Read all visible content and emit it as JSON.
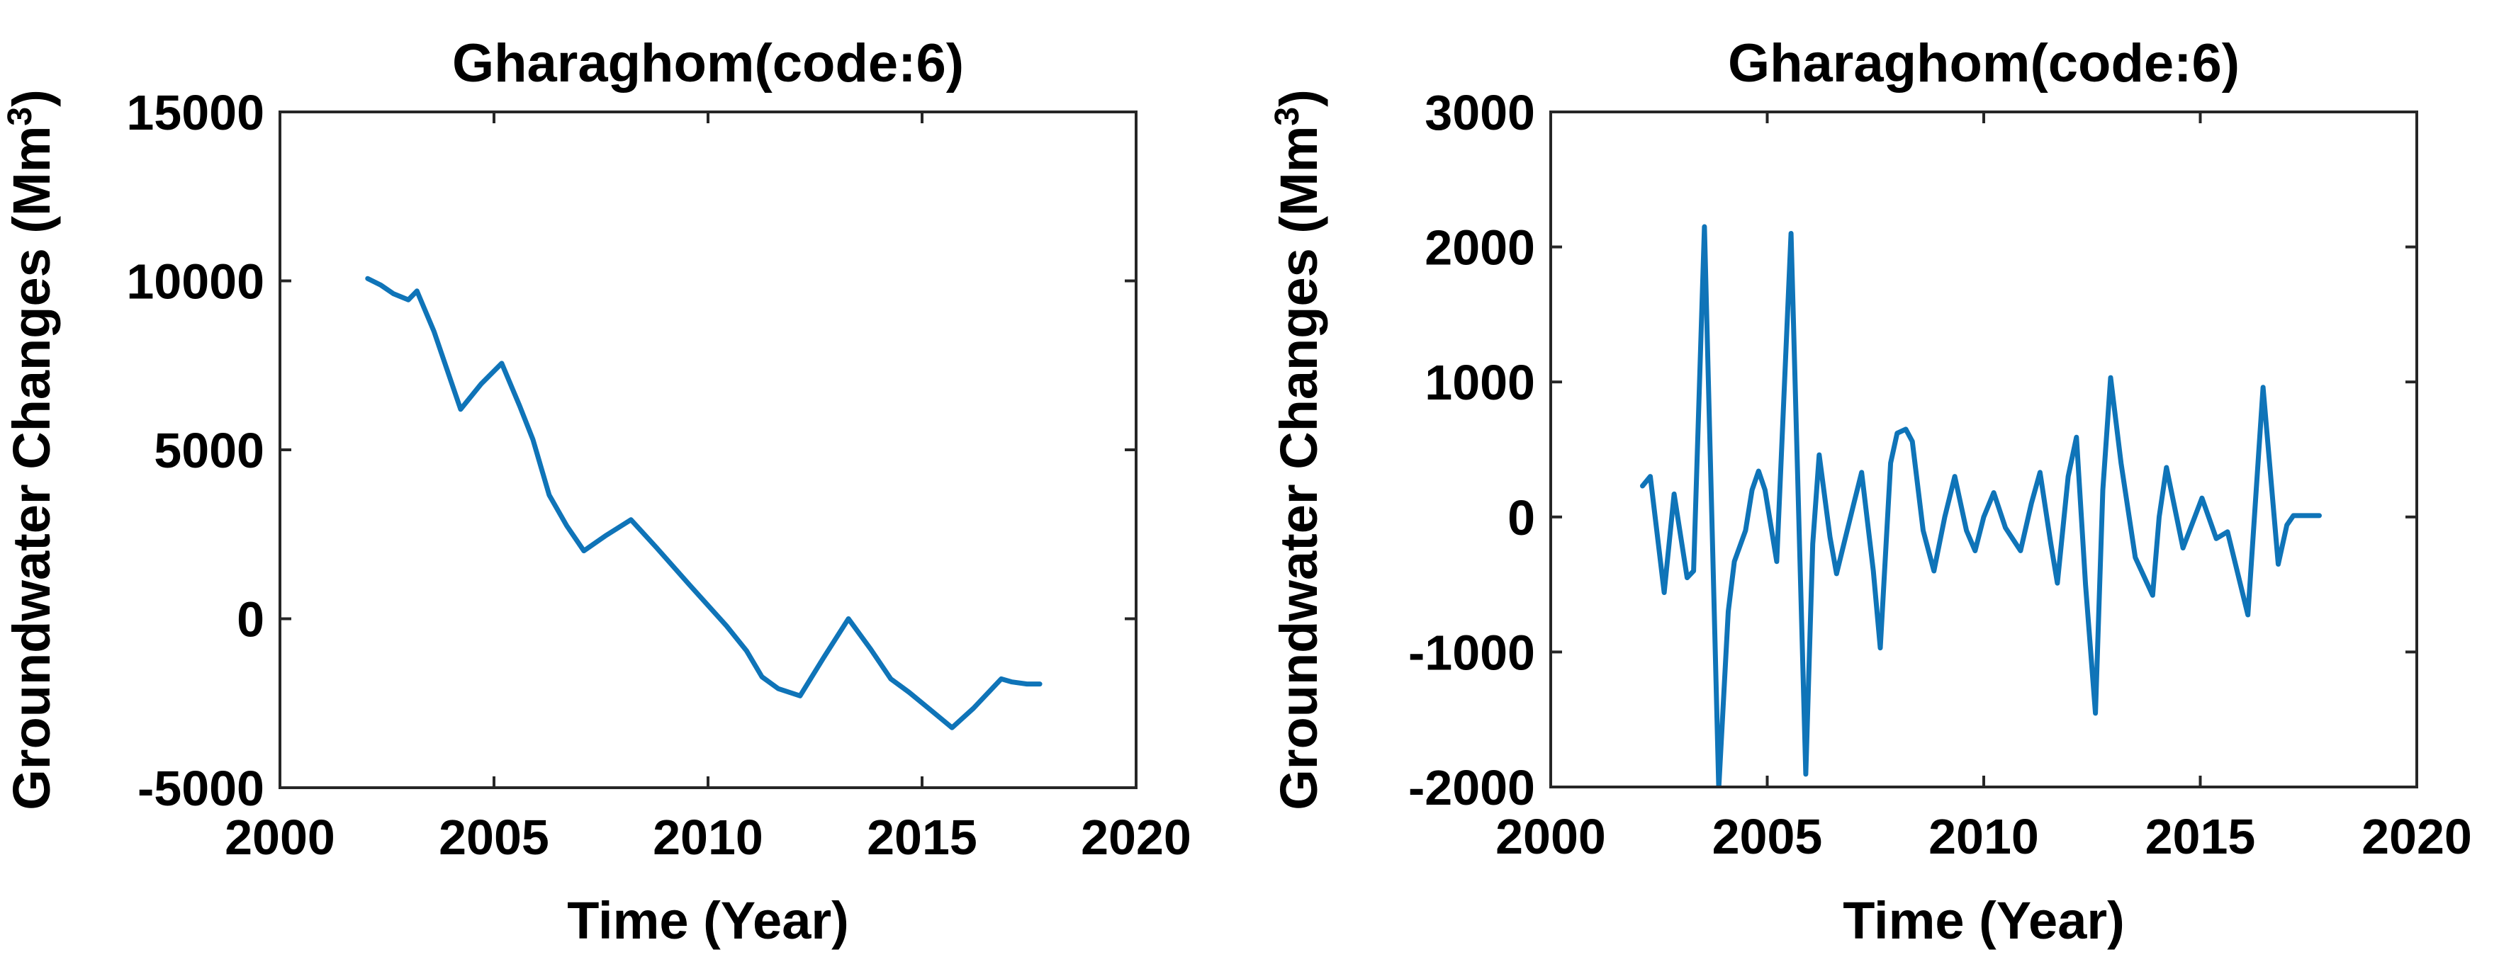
{
  "figure": {
    "background": "#ffffff",
    "line_color": "#0F74B8",
    "axis_color": "#262626",
    "text_color": "#000000"
  },
  "labels": {
    "ylabel_prefix": "Groundwater Changes (Mm",
    "ylabel_sup": "3",
    "ylabel_suffix": ")"
  },
  "chart_data": [
    {
      "type": "line",
      "title": "Gharaghom(code:6)",
      "xlabel": "Time (Year)",
      "ylabel": "Groundwater Changes (Mm^3)",
      "xlim": [
        2000,
        2020
      ],
      "ylim": [
        -5000,
        15000
      ],
      "xticks": [
        2000,
        2005,
        2010,
        2015,
        2020
      ],
      "yticks": [
        -5000,
        0,
        5000,
        10000,
        15000
      ],
      "grid": false,
      "legend": null,
      "series": [
        {
          "name": "Groundwater Changes",
          "x": [
            2002.05,
            2002.35,
            2002.65,
            2003.0,
            2003.2,
            2003.6,
            2004.22,
            2004.7,
            2005.18,
            2005.6,
            2005.91,
            2006.29,
            2006.7,
            2007.1,
            2007.6,
            2008.2,
            2008.8,
            2009.57,
            2010.43,
            2010.9,
            2011.26,
            2011.64,
            2012.15,
            2012.7,
            2013.28,
            2013.8,
            2014.27,
            2014.7,
            2015.2,
            2015.7,
            2016.2,
            2016.85,
            2017.1,
            2017.45,
            2017.75
          ],
          "y": [
            10070,
            9880,
            9620,
            9440,
            9700,
            8500,
            6200,
            6950,
            7560,
            6300,
            5300,
            3660,
            2750,
            2010,
            2450,
            2930,
            2100,
            1000,
            -210,
            -950,
            -1720,
            -2070,
            -2280,
            -1150,
            0,
            -900,
            -1780,
            -2180,
            -2700,
            -3225,
            -2650,
            -1780,
            -1870,
            -1930,
            -1930
          ]
        }
      ]
    },
    {
      "type": "line",
      "title": "Gharaghom(code:6)",
      "xlabel": "Time (Year)",
      "ylabel": "Groundwater Changes (Mm^3)",
      "xlim": [
        2000,
        2020
      ],
      "ylim": [
        -2000,
        3000
      ],
      "xticks": [
        2000,
        2005,
        2010,
        2015,
        2020
      ],
      "yticks": [
        -2000,
        -1000,
        0,
        1000,
        2000,
        3000
      ],
      "grid": false,
      "legend": null,
      "series": [
        {
          "name": "Groundwater Changes",
          "x": [
            2002.12,
            2002.3,
            2002.62,
            2002.85,
            2003.15,
            2003.3,
            2003.55,
            2003.88,
            2004.1,
            2004.24,
            2004.5,
            2004.65,
            2004.8,
            2004.95,
            2005.22,
            2005.55,
            2005.89,
            2006.05,
            2006.2,
            2006.45,
            2006.6,
            2007.0,
            2007.18,
            2007.45,
            2007.61,
            2007.85,
            2008.0,
            2008.2,
            2008.35,
            2008.6,
            2008.85,
            2009.1,
            2009.33,
            2009.6,
            2009.8,
            2010.0,
            2010.23,
            2010.5,
            2010.85,
            2011.1,
            2011.3,
            2011.55,
            2011.7,
            2011.95,
            2012.14,
            2012.35,
            2012.58,
            2012.75,
            2012.93,
            2013.17,
            2013.5,
            2013.9,
            2014.05,
            2014.22,
            2014.6,
            2015.04,
            2015.37,
            2015.63,
            2016.1,
            2016.45,
            2016.8,
            2017.0,
            2017.15,
            2017.75
          ],
          "y": [
            230,
            300,
            -560,
            170,
            -450,
            -400,
            2150,
            -2010,
            -700,
            -330,
            -100,
            200,
            340,
            200,
            -330,
            2100,
            -1905,
            -200,
            460,
            -150,
            -420,
            100,
            330,
            -400,
            -970,
            400,
            620,
            650,
            560,
            -100,
            -400,
            0,
            300,
            -100,
            -250,
            0,
            180,
            -80,
            -250,
            100,
            330,
            -200,
            -490,
            300,
            590,
            -500,
            -1454,
            200,
            1032,
            400,
            -300,
            -580,
            0,
            366,
            -230,
            140,
            -160,
            -110,
            -725,
            960,
            -350,
            -60,
            10,
            10
          ]
        }
      ]
    }
  ]
}
